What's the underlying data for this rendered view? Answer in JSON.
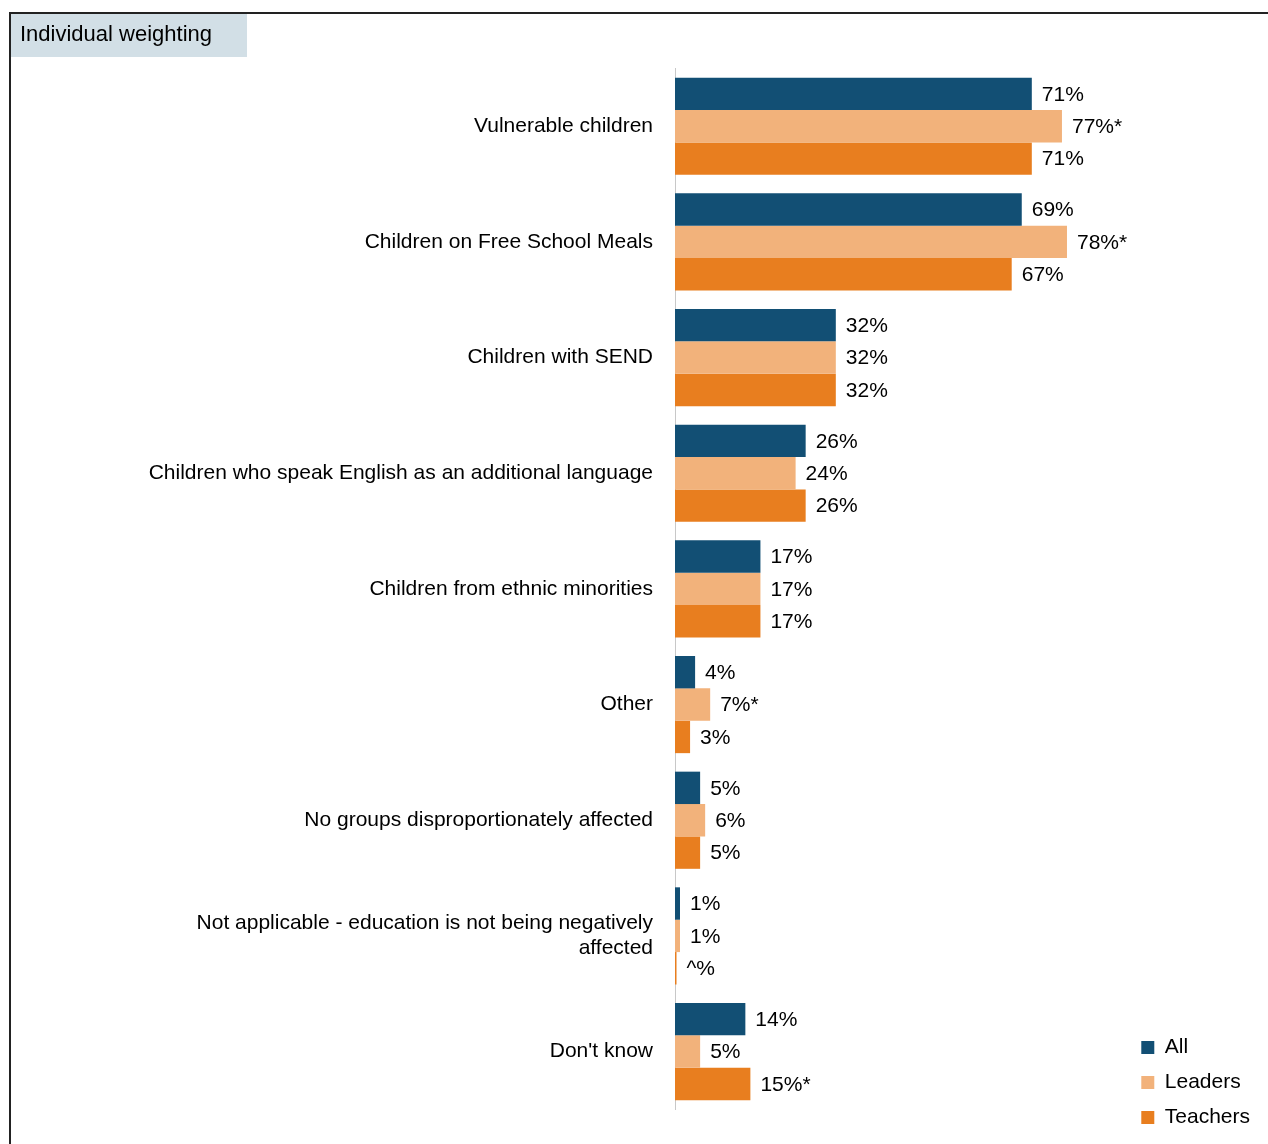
{
  "chart_data": {
    "type": "bar",
    "orientation": "horizontal",
    "title": "Individual weighting",
    "categories": [
      "Vulnerable children",
      "Children on Free School Meals",
      "Children with SEND",
      "Children who speak English as an additional language",
      "Children from ethnic minorities",
      "Other",
      "No groups disproportionately affected",
      "Not applicable - education is not being negatively affected",
      "Don't know"
    ],
    "series": [
      {
        "name": "All",
        "color": "#124f74",
        "values": [
          71,
          69,
          32,
          26,
          17,
          4,
          5,
          1,
          14
        ],
        "value_labels": [
          "71%",
          "69%",
          "32%",
          "26%",
          "17%",
          "4%",
          "5%",
          "1%",
          "14%"
        ]
      },
      {
        "name": "Leaders",
        "color": "#f2b27b",
        "values": [
          77,
          78,
          32,
          24,
          17,
          7,
          6,
          1,
          5
        ],
        "value_labels": [
          "77%*",
          "78%*",
          "32%",
          "24%",
          "17%",
          "7%*",
          "6%",
          "1%",
          "5%"
        ]
      },
      {
        "name": "Teachers",
        "color": "#e87e1f",
        "values": [
          71,
          67,
          32,
          26,
          17,
          3,
          5,
          0.3,
          15
        ],
        "value_labels": [
          "71%",
          "67%",
          "32%",
          "26%",
          "17%",
          "3%",
          "5%",
          "^%",
          "15%*"
        ]
      }
    ],
    "legend": "bottom right"
  }
}
